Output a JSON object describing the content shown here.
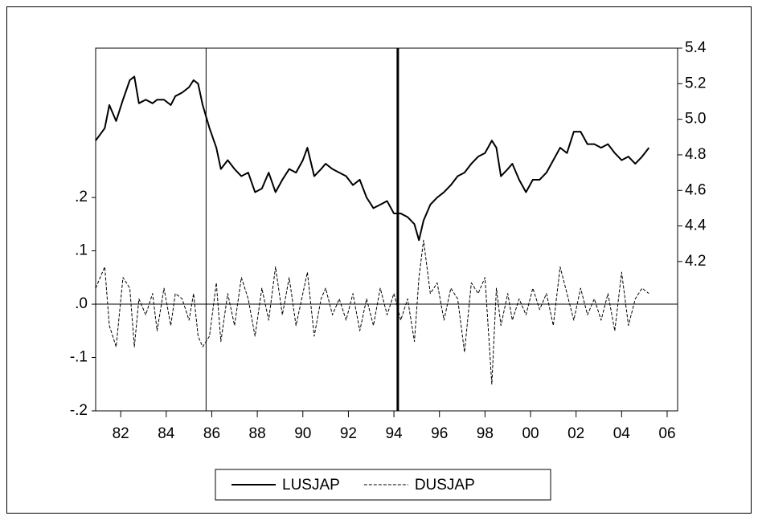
{
  "chart_data": {
    "type": "line",
    "x": [
      1980.9,
      1981.3,
      1981.5,
      1981.8,
      1982.1,
      1982.4,
      1982.6,
      1982.8,
      1983.1,
      1983.4,
      1983.6,
      1983.9,
      1984.2,
      1984.4,
      1984.7,
      1985.0,
      1985.2,
      1985.4,
      1985.6,
      1985.9,
      1986.2,
      1986.4,
      1986.7,
      1987.0,
      1987.3,
      1987.6,
      1987.9,
      1988.2,
      1988.5,
      1988.8,
      1989.1,
      1989.4,
      1989.7,
      1990.0,
      1990.2,
      1990.5,
      1990.8,
      1991.0,
      1991.3,
      1991.6,
      1991.9,
      1992.2,
      1992.5,
      1992.8,
      1993.1,
      1993.4,
      1993.7,
      1994.0,
      1994.3,
      1994.6,
      1994.9,
      1995.1,
      1995.3,
      1995.6,
      1995.9,
      1996.2,
      1996.5,
      1996.8,
      1997.1,
      1997.4,
      1997.7,
      1998.0,
      1998.3,
      1998.5,
      1998.7,
      1999.0,
      1999.2,
      1999.5,
      1999.8,
      2000.1,
      2000.4,
      2000.7,
      2001.0,
      2001.3,
      2001.6,
      2001.9,
      2002.2,
      2002.5,
      2002.8,
      2003.1,
      2003.4,
      2003.7,
      2004.0,
      2004.3,
      2004.6,
      2004.9,
      2005.2
    ],
    "series": [
      {
        "name": "LUSJAP",
        "color": "#000000",
        "axis": "y2",
        "dash": "solid",
        "width": 2,
        "values": [
          4.88,
          4.95,
          5.08,
          4.99,
          5.11,
          5.22,
          5.24,
          5.09,
          5.11,
          5.09,
          5.11,
          5.11,
          5.08,
          5.13,
          5.15,
          5.18,
          5.22,
          5.2,
          5.08,
          4.95,
          4.84,
          4.72,
          4.77,
          4.72,
          4.68,
          4.7,
          4.59,
          4.61,
          4.7,
          4.59,
          4.66,
          4.72,
          4.7,
          4.77,
          4.84,
          4.68,
          4.72,
          4.75,
          4.72,
          4.7,
          4.68,
          4.63,
          4.66,
          4.56,
          4.5,
          4.52,
          4.54,
          4.47,
          4.47,
          4.45,
          4.41,
          4.32,
          4.43,
          4.52,
          4.56,
          4.59,
          4.63,
          4.68,
          4.7,
          4.75,
          4.79,
          4.81,
          4.88,
          4.84,
          4.68,
          4.72,
          4.75,
          4.66,
          4.59,
          4.66,
          4.66,
          4.7,
          4.77,
          4.84,
          4.81,
          4.93,
          4.93,
          4.86,
          4.86,
          4.84,
          4.86,
          4.81,
          4.77,
          4.79,
          4.75,
          4.79,
          4.84
        ]
      },
      {
        "name": "DUSJAP",
        "color": "#000000",
        "axis": "y",
        "dash": "dashed",
        "width": 1,
        "values": [
          0.03,
          0.07,
          -0.04,
          -0.08,
          0.05,
          0.03,
          -0.08,
          0.01,
          -0.02,
          0.02,
          -0.05,
          0.03,
          -0.04,
          0.02,
          0.01,
          -0.03,
          0.02,
          -0.06,
          -0.08,
          -0.06,
          0.04,
          -0.07,
          0.02,
          -0.04,
          0.05,
          0.01,
          -0.06,
          0.03,
          -0.03,
          0.07,
          -0.02,
          0.05,
          -0.04,
          0.02,
          0.06,
          -0.06,
          0.01,
          0.03,
          -0.02,
          0.01,
          -0.03,
          0.02,
          -0.05,
          0.01,
          -0.04,
          0.03,
          -0.02,
          0.02,
          -0.03,
          0.01,
          -0.07,
          0.05,
          0.12,
          0.02,
          0.04,
          -0.03,
          0.03,
          0.01,
          -0.09,
          0.04,
          0.02,
          0.05,
          -0.15,
          0.03,
          -0.04,
          0.02,
          -0.03,
          0.01,
          -0.02,
          0.03,
          -0.01,
          0.02,
          -0.04,
          0.07,
          0.02,
          -0.03,
          0.03,
          -0.02,
          0.01,
          -0.03,
          0.02,
          -0.05,
          0.06,
          -0.04,
          0.01,
          0.03,
          0.02
        ]
      }
    ],
    "xlim": [
      1980.9,
      2006.46
    ],
    "xticks": [
      {
        "value": 1982,
        "label": "82"
      },
      {
        "value": 1984,
        "label": "84"
      },
      {
        "value": 1986,
        "label": "86"
      },
      {
        "value": 1988,
        "label": "88"
      },
      {
        "value": 1990,
        "label": "90"
      },
      {
        "value": 1992,
        "label": "92"
      },
      {
        "value": 1994,
        "label": "94"
      },
      {
        "value": 1996,
        "label": "96"
      },
      {
        "value": 1998,
        "label": "98"
      },
      {
        "value": 2000,
        "label": "00"
      },
      {
        "value": 2002,
        "label": "02"
      },
      {
        "value": 2004,
        "label": "04"
      },
      {
        "value": 2006,
        "label": "06"
      }
    ],
    "ylim": [
      -0.2,
      0.48
    ],
    "yticks": [
      {
        "value": -0.2,
        "label": "-.2"
      },
      {
        "value": -0.1,
        "label": "-.1"
      },
      {
        "value": 0,
        "label": ".0"
      },
      {
        "value": 0.1,
        "label": ".1"
      },
      {
        "value": 0.2,
        "label": ".2"
      }
    ],
    "y2lim": [
      3.36,
      5.4
    ],
    "y2ticks": [
      4.2,
      4.4,
      4.6,
      4.8,
      {
        "value": 5,
        "label": "5.0"
      },
      5.2,
      5.4
    ],
    "zero_line": true,
    "vlines": [
      {
        "x": 1985.75,
        "width": 1
      },
      {
        "x": 1994.17,
        "width": 3
      }
    ],
    "legend": "bottom"
  }
}
